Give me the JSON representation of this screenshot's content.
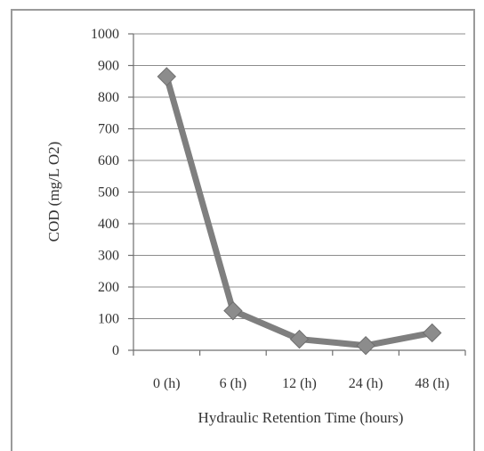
{
  "chart_data": {
    "type": "line",
    "categories": [
      "0 (h)",
      "6 (h)",
      "12 (h)",
      "24 (h)",
      "48 (h)"
    ],
    "series": [
      {
        "values": [
          865,
          125,
          35,
          15,
          55
        ]
      }
    ],
    "xlabel": "Hydraulic Retention Time (hours)",
    "ylabel": "COD (mg/L O2)",
    "ylim": [
      0,
      1000
    ],
    "yticks": [
      "0",
      "100",
      "200",
      "300",
      "400",
      "500",
      "600",
      "700",
      "800",
      "900",
      "1000"
    ],
    "grid": true,
    "legend": "none",
    "colors": {
      "line": "#7f7f7f",
      "marker": "#8c8c8c"
    }
  }
}
